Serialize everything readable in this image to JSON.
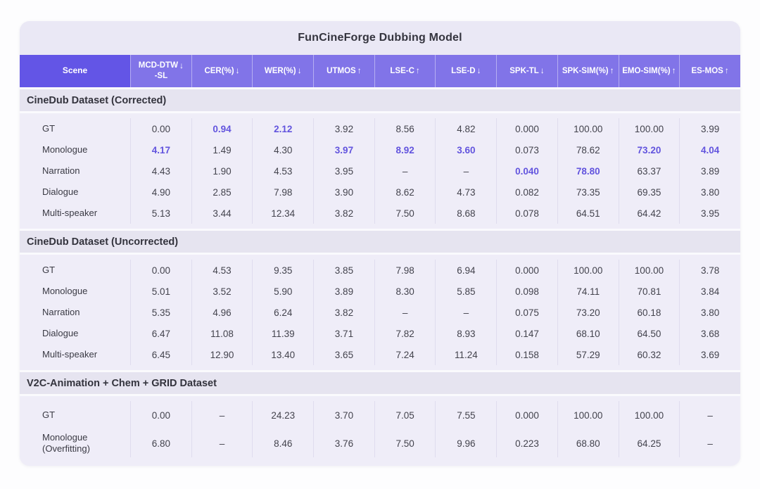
{
  "title": "FunCineForge Dubbing Model",
  "colors": {
    "header_bg": "#8174E8",
    "scene_header_bg": "#6355E6",
    "card_bg": "#EAE8F5",
    "band_bg": "#E6E4F0",
    "block_bg": "#EFEDF8",
    "highlight_text": "#6254DE"
  },
  "columns": [
    {
      "label": "Scene",
      "arrow": ""
    },
    {
      "label": "MCD-DTW",
      "sub": "-SL",
      "arrow": "↓"
    },
    {
      "label": "CER(%)",
      "arrow": "↓"
    },
    {
      "label": "WER(%)",
      "arrow": "↓"
    },
    {
      "label": "UTMOS",
      "arrow": "↑"
    },
    {
      "label": "LSE-C",
      "arrow": "↑"
    },
    {
      "label": "LSE-D",
      "arrow": "↓"
    },
    {
      "label": "SPK-TL",
      "arrow": "↓"
    },
    {
      "label": "SPK-SIM(%)",
      "arrow": "↑"
    },
    {
      "label": "EMO-SIM(%)",
      "arrow": "↑"
    },
    {
      "label": "ES-MOS",
      "arrow": "↑"
    }
  ],
  "sections": [
    {
      "title": "CineDub Dataset (Corrected)",
      "rows": [
        {
          "scene": "GT",
          "values": [
            "0.00",
            "0.94",
            "2.12",
            "3.92",
            "8.56",
            "4.82",
            "0.000",
            "100.00",
            "100.00",
            "3.99"
          ],
          "hl": [
            1,
            2
          ]
        },
        {
          "scene": "Monologue",
          "values": [
            "4.17",
            "1.49",
            "4.30",
            "3.97",
            "8.92",
            "3.60",
            "0.073",
            "78.62",
            "73.20",
            "4.04"
          ],
          "hl": [
            0,
            3,
            4,
            5,
            8,
            9
          ]
        },
        {
          "scene": "Narration",
          "values": [
            "4.43",
            "1.90",
            "4.53",
            "3.95",
            "–",
            "–",
            "0.040",
            "78.80",
            "63.37",
            "3.89"
          ],
          "hl": [
            6,
            7
          ]
        },
        {
          "scene": "Dialogue",
          "values": [
            "4.90",
            "2.85",
            "7.98",
            "3.90",
            "8.62",
            "4.73",
            "0.082",
            "73.35",
            "69.35",
            "3.80"
          ],
          "hl": []
        },
        {
          "scene": "Multi-speaker",
          "values": [
            "5.13",
            "3.44",
            "12.34",
            "3.82",
            "7.50",
            "8.68",
            "0.078",
            "64.51",
            "64.42",
            "3.95"
          ],
          "hl": []
        }
      ]
    },
    {
      "title": "CineDub Dataset (Uncorrected)",
      "rows": [
        {
          "scene": "GT",
          "values": [
            "0.00",
            "4.53",
            "9.35",
            "3.85",
            "7.98",
            "6.94",
            "0.000",
            "100.00",
            "100.00",
            "3.78"
          ],
          "hl": []
        },
        {
          "scene": "Monologue",
          "values": [
            "5.01",
            "3.52",
            "5.90",
            "3.89",
            "8.30",
            "5.85",
            "0.098",
            "74.11",
            "70.81",
            "3.84"
          ],
          "hl": []
        },
        {
          "scene": "Narration",
          "values": [
            "5.35",
            "4.96",
            "6.24",
            "3.82",
            "–",
            "–",
            "0.075",
            "73.20",
            "60.18",
            "3.80"
          ],
          "hl": []
        },
        {
          "scene": "Dialogue",
          "values": [
            "6.47",
            "11.08",
            "11.39",
            "3.71",
            "7.82",
            "8.93",
            "0.147",
            "68.10",
            "64.50",
            "3.68"
          ],
          "hl": []
        },
        {
          "scene": "Multi-speaker",
          "values": [
            "6.45",
            "12.90",
            "13.40",
            "3.65",
            "7.24",
            "11.24",
            "0.158",
            "57.29",
            "60.32",
            "3.69"
          ],
          "hl": []
        }
      ]
    },
    {
      "title": "V2C-Animation + Chem + GRID Dataset",
      "rows": [
        {
          "scene": "GT",
          "values": [
            "0.00",
            "–",
            "24.23",
            "3.70",
            "7.05",
            "7.55",
            "0.000",
            "100.00",
            "100.00",
            "–"
          ],
          "hl": []
        },
        {
          "scene": "Monologue",
          "scene2": "(Overfitting)",
          "values": [
            "6.80",
            "–",
            "8.46",
            "3.76",
            "7.50",
            "9.96",
            "0.223",
            "68.80",
            "64.25",
            "–"
          ],
          "hl": []
        }
      ]
    }
  ]
}
